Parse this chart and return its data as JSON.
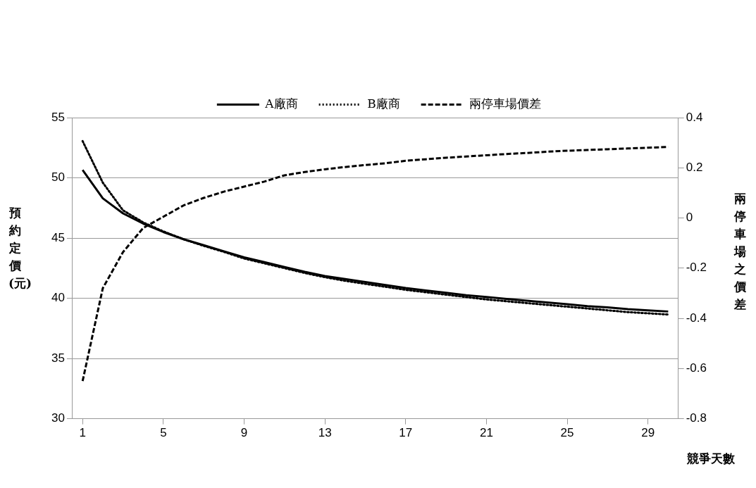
{
  "chart_data": {
    "type": "line",
    "xlabel": "競爭天數",
    "ylabel": "預約定價(元)",
    "y2label": "兩停車場之價差",
    "x": [
      1,
      2,
      3,
      4,
      5,
      6,
      7,
      8,
      9,
      10,
      11,
      12,
      13,
      14,
      15,
      16,
      17,
      18,
      19,
      20,
      21,
      22,
      23,
      24,
      25,
      26,
      27,
      28,
      29,
      30
    ],
    "xlim": [
      0.5,
      30.5
    ],
    "xticks": [
      1,
      5,
      9,
      13,
      17,
      21,
      25,
      29
    ],
    "ylim": [
      30,
      55
    ],
    "yticks": [
      30,
      35,
      40,
      45,
      50,
      55
    ],
    "y2lim": [
      -0.8,
      0.4
    ],
    "y2ticks": [
      -0.8,
      -0.6,
      -0.4,
      -0.2,
      0,
      0.2,
      0.4
    ],
    "grid": "y",
    "legend": "top",
    "marker": "none",
    "series": [
      {
        "name": "A廠商",
        "color": "#000000",
        "line_style": "solid",
        "values": [
          50.65,
          48.3,
          47.05,
          46.2,
          45.5,
          44.9,
          44.4,
          43.9,
          43.4,
          43.0,
          42.6,
          42.2,
          41.85,
          41.6,
          41.35,
          41.1,
          40.85,
          40.65,
          40.45,
          40.25,
          40.1,
          39.95,
          39.8,
          39.65,
          39.5,
          39.35,
          39.25,
          39.1,
          39.0,
          38.9
        ]
      },
      {
        "name": "B廠商",
        "color": "#000000",
        "line_style": "dotted",
        "values": [
          53.05,
          49.6,
          47.3,
          46.3,
          45.55,
          44.9,
          44.35,
          43.85,
          43.3,
          42.9,
          42.5,
          42.1,
          41.75,
          41.45,
          41.2,
          40.95,
          40.7,
          40.5,
          40.3,
          40.1,
          39.9,
          39.75,
          39.6,
          39.45,
          39.3,
          39.15,
          39.0,
          38.85,
          38.75,
          38.65
        ]
      },
      {
        "name": "兩停車場價差",
        "color": "#000000",
        "line_style": "dashed",
        "axis": "y2",
        "values": [
          -0.65,
          -0.28,
          -0.136,
          -0.04,
          0.005,
          0.05,
          0.08,
          0.105,
          0.125,
          0.145,
          0.17,
          0.183,
          0.194,
          0.203,
          0.211,
          0.218,
          0.228,
          0.234,
          0.24,
          0.245,
          0.25,
          0.255,
          0.259,
          0.264,
          0.268,
          0.271,
          0.274,
          0.277,
          0.28,
          0.283
        ]
      }
    ]
  }
}
